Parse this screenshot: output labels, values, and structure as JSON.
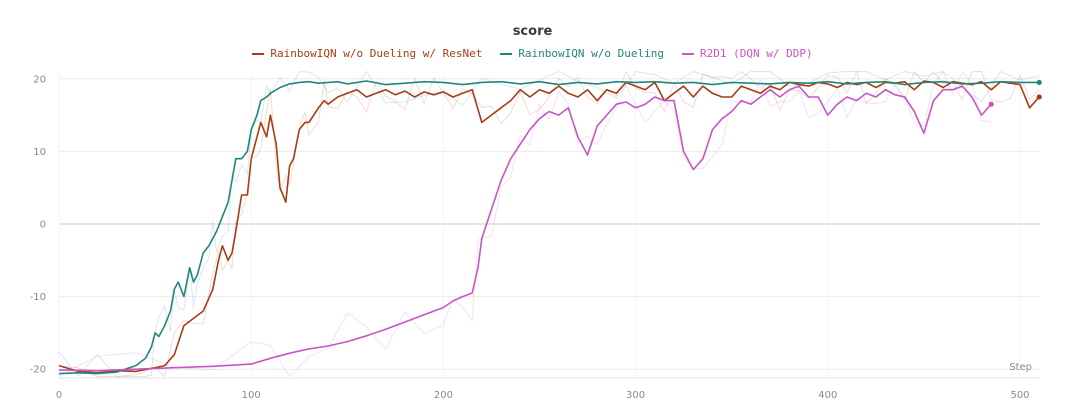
{
  "chart_data": {
    "type": "line",
    "title": "score",
    "xlabel": "Step",
    "ylabel": "",
    "xlim": [
      0,
      510
    ],
    "ylim": [
      -20.5,
      21
    ],
    "xticks": [
      0,
      100,
      200,
      300,
      400,
      500
    ],
    "yticks": [
      -20,
      -10,
      0,
      10,
      20
    ],
    "grid": true,
    "legend_position": "top-center",
    "series": [
      {
        "name": "RainbowIQN w/o Dueling w/ ResNet",
        "color": "#a63d14",
        "x": [
          0,
          10,
          20,
          30,
          40,
          50,
          55,
          60,
          65,
          70,
          75,
          80,
          83,
          85,
          88,
          90,
          92,
          95,
          98,
          100,
          103,
          105,
          108,
          110,
          113,
          115,
          118,
          120,
          122,
          125,
          128,
          130,
          135,
          138,
          140,
          145,
          150,
          155,
          160,
          165,
          170,
          175,
          180,
          185,
          190,
          195,
          200,
          205,
          210,
          215,
          220,
          225,
          230,
          235,
          240,
          245,
          250,
          255,
          260,
          265,
          270,
          275,
          280,
          285,
          290,
          295,
          300,
          305,
          310,
          315,
          320,
          325,
          330,
          335,
          340,
          345,
          350,
          355,
          360,
          365,
          370,
          375,
          380,
          385,
          390,
          395,
          400,
          405,
          410,
          415,
          420,
          425,
          430,
          435,
          440,
          445,
          450,
          455,
          460,
          465,
          470,
          475,
          480,
          485,
          490,
          495,
          500,
          505,
          510
        ],
        "values": [
          -19.5,
          -20.3,
          -20.5,
          -20.2,
          -20.3,
          -19.8,
          -19.5,
          -18,
          -14,
          -13,
          -12,
          -9,
          -5,
          -3,
          -5,
          -4,
          -1,
          4,
          4,
          9,
          12,
          14,
          12,
          15,
          11,
          5,
          3,
          8,
          9,
          13,
          14,
          14,
          16,
          17,
          16.5,
          17.5,
          18,
          18.5,
          17.5,
          18,
          18.5,
          17.8,
          18.3,
          17.5,
          18.2,
          17.8,
          18.2,
          17.5,
          18,
          18.5,
          14,
          15,
          16,
          17,
          18.5,
          17.5,
          18.5,
          18,
          19,
          18,
          17.5,
          18.5,
          17,
          18.5,
          18,
          19.5,
          19,
          18.5,
          19.5,
          17,
          18,
          19,
          17.5,
          19,
          18,
          17.5,
          17.5,
          19,
          18.5,
          18,
          19,
          18.5,
          19.5,
          19.2,
          19,
          19.5,
          19.3,
          18.8,
          19.5,
          19.2,
          19.5,
          18.8,
          19.5,
          19.4,
          19.6,
          18.5,
          19.7,
          19.5,
          18.8,
          19.6,
          19.4,
          19.2,
          19.6,
          18.5,
          19.6,
          19.4,
          19.2,
          16,
          17.5
        ]
      },
      {
        "name": "RainbowIQN w/o Dueling",
        "color": "#20877c",
        "x": [
          0,
          10,
          20,
          30,
          40,
          45,
          48,
          50,
          52,
          55,
          58,
          60,
          62,
          65,
          68,
          70,
          72,
          75,
          78,
          80,
          82,
          85,
          88,
          90,
          92,
          95,
          98,
          100,
          103,
          105,
          108,
          110,
          115,
          120,
          125,
          130,
          135,
          140,
          145,
          150,
          160,
          170,
          180,
          190,
          200,
          210,
          220,
          230,
          240,
          250,
          260,
          270,
          280,
          290,
          300,
          310,
          320,
          330,
          340,
          350,
          360,
          370,
          380,
          390,
          400,
          410,
          420,
          430,
          440,
          450,
          460,
          470,
          480,
          490,
          500,
          510
        ],
        "values": [
          -20.6,
          -20.5,
          -20.6,
          -20.4,
          -19.5,
          -18.5,
          -17,
          -15,
          -15.5,
          -14,
          -12,
          -9,
          -8,
          -10,
          -6,
          -8,
          -7,
          -4,
          -3,
          -2,
          -1,
          1,
          3,
          6,
          9,
          9,
          10,
          13,
          15,
          17,
          17.5,
          18,
          18.8,
          19.3,
          19.5,
          19.6,
          19.4,
          19.5,
          19.6,
          19.3,
          19.7,
          19.2,
          19.4,
          19.6,
          19.5,
          19.2,
          19.5,
          19.6,
          19.3,
          19.6,
          19.2,
          19.5,
          19.3,
          19.6,
          19.5,
          19.6,
          19.4,
          19.5,
          19.2,
          19.5,
          19.4,
          19.3,
          19.5,
          19.4,
          19.6,
          19.3,
          19.5,
          19.6,
          19.2,
          19.5,
          19.6,
          19.3,
          19.4,
          19.6,
          19.5,
          19.5
        ]
      },
      {
        "name": "R2D1 (DQN w/ DDP)",
        "color": "#c656c6",
        "x": [
          0,
          20,
          40,
          60,
          80,
          100,
          110,
          120,
          130,
          140,
          150,
          160,
          170,
          180,
          190,
          200,
          205,
          210,
          215,
          218,
          220,
          225,
          230,
          235,
          240,
          245,
          250,
          255,
          260,
          265,
          270,
          275,
          280,
          285,
          290,
          295,
          300,
          305,
          310,
          315,
          320,
          325,
          330,
          335,
          340,
          345,
          350,
          355,
          360,
          365,
          370,
          375,
          380,
          385,
          390,
          395,
          400,
          405,
          410,
          415,
          420,
          425,
          430,
          435,
          440,
          445,
          450,
          455,
          460,
          465,
          470,
          475,
          480,
          485
        ],
        "values": [
          -20.1,
          -20.2,
          -20.0,
          -19.8,
          -19.6,
          -19.3,
          -18.5,
          -17.8,
          -17.2,
          -16.8,
          -16.2,
          -15.4,
          -14.5,
          -13.5,
          -12.5,
          -11.5,
          -10.6,
          -10,
          -9.5,
          -6,
          -2,
          2,
          6,
          9,
          11,
          13,
          14.5,
          15.5,
          15,
          16,
          12,
          9.5,
          13.5,
          15,
          16.5,
          16.8,
          16,
          16.5,
          17.5,
          17,
          17,
          10,
          7.5,
          9,
          13,
          14.5,
          15.5,
          17,
          16.5,
          17.5,
          18.5,
          17.5,
          18.5,
          19,
          17.5,
          17.5,
          15,
          16.5,
          17.5,
          17,
          18,
          17.5,
          18.5,
          17.8,
          17.5,
          15.5,
          12.5,
          17,
          18.5,
          18.5,
          19,
          17.5,
          15,
          16.5
        ]
      }
    ]
  },
  "colors": {
    "grid": "#ececec",
    "axis_text": "#8a8a8a",
    "title": "#3a3a3a"
  }
}
